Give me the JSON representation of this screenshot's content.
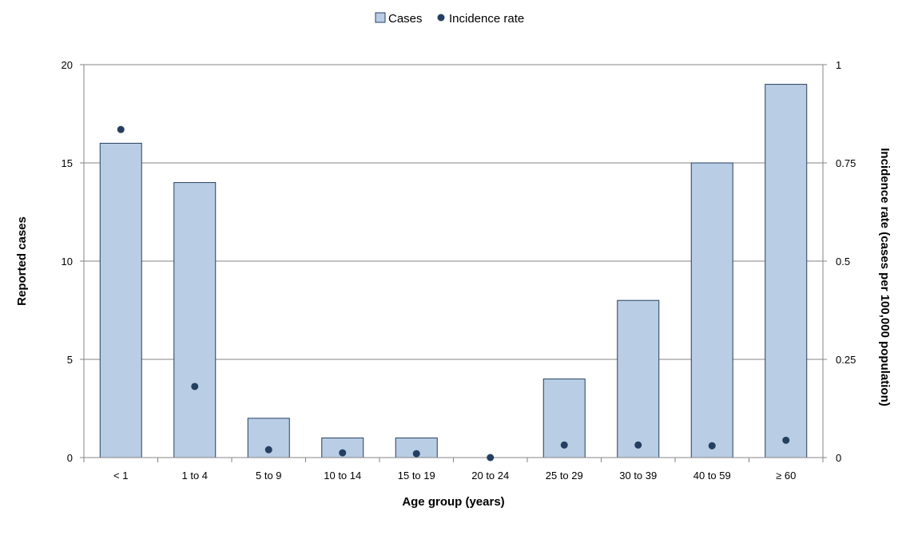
{
  "chart_data": {
    "type": "bar",
    "categories": [
      "< 1",
      "1 to 4",
      "5 to 9",
      "10 to 14",
      "15 to 19",
      "20 to 24",
      "25 to 29",
      "30 to 39",
      "40 to 59",
      "≥ 60"
    ],
    "series": [
      {
        "name": "Cases",
        "type": "bar",
        "axis": "left",
        "color": "#b9cde5",
        "values": [
          16,
          14,
          2,
          1,
          1,
          0,
          4,
          8,
          15,
          19
        ]
      },
      {
        "name": "Incidence rate",
        "type": "scatter",
        "axis": "right",
        "color": "#243f60",
        "values": [
          0.835,
          0.181,
          0.02,
          0.012,
          0.01,
          0.0,
          0.032,
          0.032,
          0.03,
          0.044
        ]
      }
    ],
    "xlabel": "Age group (years)",
    "ylabel": "Reported cases",
    "y2label": "Incidence rate (cases per 100,000 population)",
    "ylim": [
      0,
      20
    ],
    "yticks": [
      "0",
      "5",
      "10",
      "15",
      "20"
    ],
    "y2lim": [
      0,
      1
    ],
    "y2ticks": [
      "0",
      "0.25",
      "0.5",
      "0.75",
      "1"
    ],
    "grid": true,
    "legend": "top-center"
  }
}
